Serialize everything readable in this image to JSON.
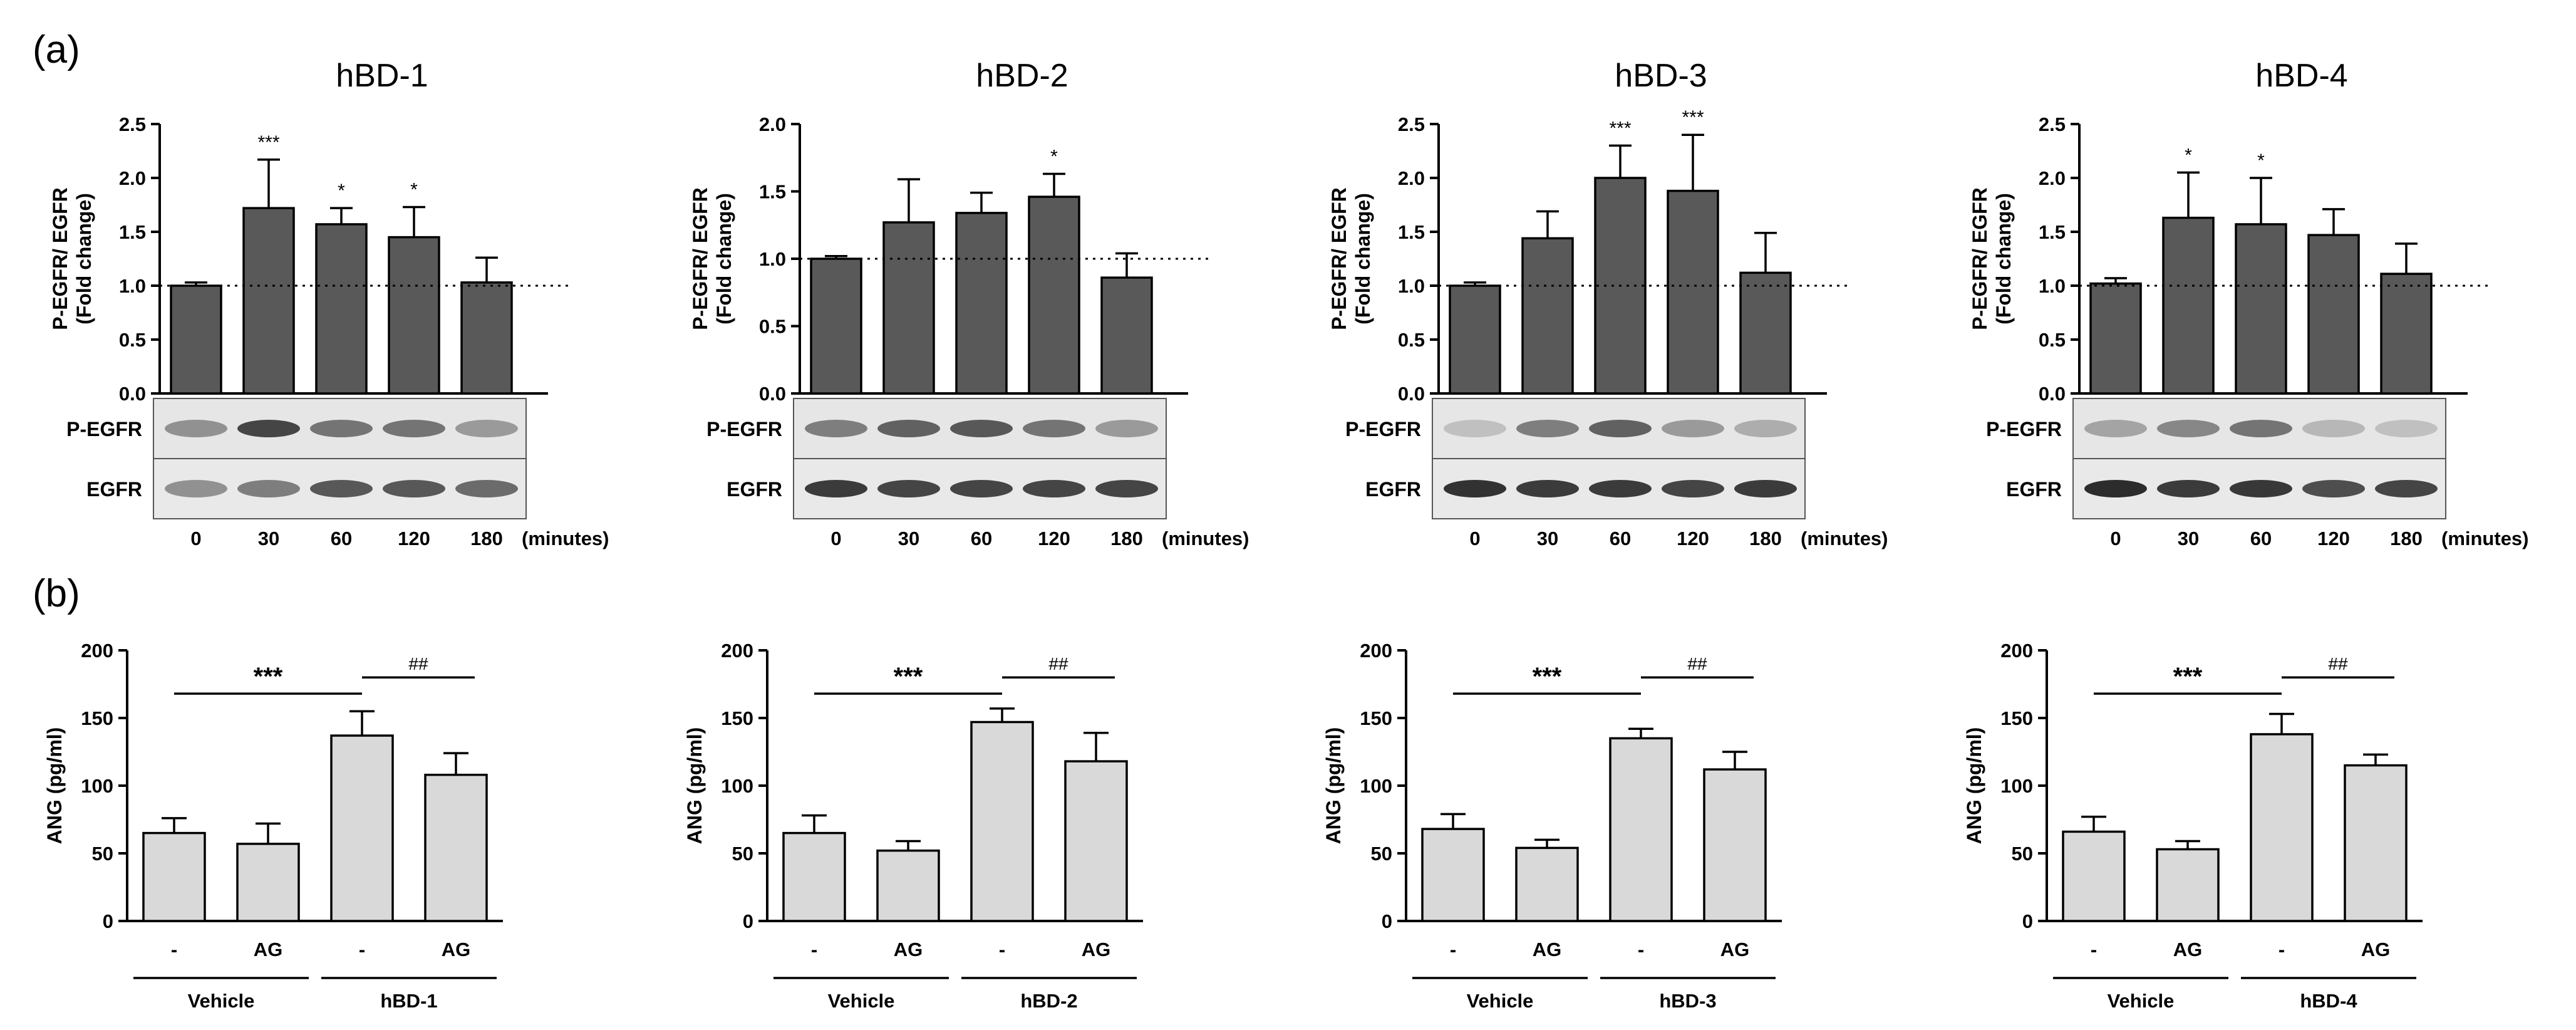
{
  "panel_labels": {
    "a": "(a)",
    "b": "(b)"
  },
  "top_ylabel": [
    "P-EGFR/ EGFR",
    "(Fold change)"
  ],
  "bottom_ylabel": "ANG (pg/ml)",
  "blot_labels": [
    "P-EGFR",
    "EGFR"
  ],
  "minutes_label": "(minutes)",
  "bottom_group_label": "Vehicle",
  "bottom_sig_main": "***",
  "bottom_sig_hash": "##",
  "colors": {
    "dark_bar": "#595959",
    "light_bar": "#d9d9d9",
    "axis": "#000000"
  },
  "chart_data": [
    {
      "type": "bar",
      "panel": "a",
      "title": "hBD-1",
      "categories": [
        "0",
        "30",
        "60",
        "120",
        "180"
      ],
      "values": [
        1.0,
        1.72,
        1.57,
        1.45,
        1.03
      ],
      "errors": [
        0.03,
        0.45,
        0.15,
        0.28,
        0.23
      ],
      "significance": [
        "",
        "***",
        "*",
        "*",
        ""
      ],
      "ylim": [
        0,
        2.5
      ],
      "yticks": [
        "0.0",
        "0.5",
        "1.0",
        "1.5",
        "2.0",
        "2.5"
      ],
      "reference_line": 1.0,
      "blot_intensity": {
        "P-EGFR": [
          0.45,
          0.85,
          0.6,
          0.6,
          0.4
        ],
        "EGFR": [
          0.45,
          0.55,
          0.75,
          0.75,
          0.65
        ]
      }
    },
    {
      "type": "bar",
      "panel": "a",
      "title": "hBD-2",
      "categories": [
        "0",
        "30",
        "60",
        "120",
        "180"
      ],
      "values": [
        1.0,
        1.27,
        1.34,
        1.46,
        0.86
      ],
      "errors": [
        0.02,
        0.32,
        0.15,
        0.17,
        0.18
      ],
      "significance": [
        "",
        "",
        "",
        "*",
        ""
      ],
      "ylim": [
        0,
        2.0
      ],
      "yticks": [
        "0.0",
        "0.5",
        "1.0",
        "1.5",
        "2.0"
      ],
      "reference_line": 1.0,
      "blot_intensity": {
        "P-EGFR": [
          0.55,
          0.7,
          0.75,
          0.6,
          0.4
        ],
        "EGFR": [
          0.9,
          0.85,
          0.85,
          0.85,
          0.85
        ]
      }
    },
    {
      "type": "bar",
      "panel": "a",
      "title": "hBD-3",
      "categories": [
        "0",
        "30",
        "60",
        "120",
        "180"
      ],
      "values": [
        1.0,
        1.44,
        2.0,
        1.88,
        1.12
      ],
      "errors": [
        0.03,
        0.25,
        0.3,
        0.52,
        0.37
      ],
      "significance": [
        "",
        "",
        "***",
        "***",
        ""
      ],
      "ylim": [
        0,
        2.5
      ],
      "yticks": [
        "0.0",
        "0.5",
        "1.0",
        "1.5",
        "2.0",
        "2.5"
      ],
      "reference_line": 1.0,
      "blot_intensity": {
        "P-EGFR": [
          0.2,
          0.55,
          0.7,
          0.4,
          0.3
        ],
        "EGFR": [
          0.95,
          0.9,
          0.9,
          0.85,
          0.9
        ]
      }
    },
    {
      "type": "bar",
      "panel": "a",
      "title": "hBD-4",
      "categories": [
        "0",
        "30",
        "60",
        "120",
        "180"
      ],
      "values": [
        1.02,
        1.63,
        1.57,
        1.47,
        1.11
      ],
      "errors": [
        0.05,
        0.42,
        0.43,
        0.24,
        0.28
      ],
      "significance": [
        "",
        "*",
        "*",
        "",
        ""
      ],
      "ylim": [
        0,
        2.5
      ],
      "yticks": [
        "0.0",
        "0.5",
        "1.0",
        "1.5",
        "2.0",
        "2.5"
      ],
      "reference_line": 1.0,
      "blot_intensity": {
        "P-EGFR": [
          0.35,
          0.5,
          0.6,
          0.25,
          0.2
        ],
        "EGFR": [
          0.98,
          0.9,
          0.92,
          0.8,
          0.85
        ]
      }
    },
    {
      "type": "bar",
      "panel": "b",
      "group_label": "hBD-1",
      "categories": [
        "-",
        "AG",
        "-",
        "AG"
      ],
      "values": [
        65,
        57,
        137,
        108
      ],
      "errors": [
        11,
        15,
        18,
        16
      ],
      "ylim": [
        0,
        200
      ],
      "yticks": [
        "0",
        "50",
        "100",
        "150",
        "200"
      ]
    },
    {
      "type": "bar",
      "panel": "b",
      "group_label": "hBD-2",
      "categories": [
        "-",
        "AG",
        "-",
        "AG"
      ],
      "values": [
        65,
        52,
        147,
        118
      ],
      "errors": [
        13,
        7,
        10,
        21
      ],
      "ylim": [
        0,
        200
      ],
      "yticks": [
        "0",
        "50",
        "100",
        "150",
        "200"
      ]
    },
    {
      "type": "bar",
      "panel": "b",
      "group_label": "hBD-3",
      "categories": [
        "-",
        "AG",
        "-",
        "AG"
      ],
      "values": [
        68,
        54,
        135,
        112
      ],
      "errors": [
        11,
        6,
        7,
        13
      ],
      "ylim": [
        0,
        200
      ],
      "yticks": [
        "0",
        "50",
        "100",
        "150",
        "200"
      ]
    },
    {
      "type": "bar",
      "panel": "b",
      "group_label": "hBD-4",
      "categories": [
        "-",
        "AG",
        "-",
        "AG"
      ],
      "values": [
        66,
        53,
        138,
        115
      ],
      "errors": [
        11,
        6,
        15,
        8
      ],
      "ylim": [
        0,
        200
      ],
      "yticks": [
        "0",
        "50",
        "100",
        "150",
        "200"
      ]
    }
  ]
}
